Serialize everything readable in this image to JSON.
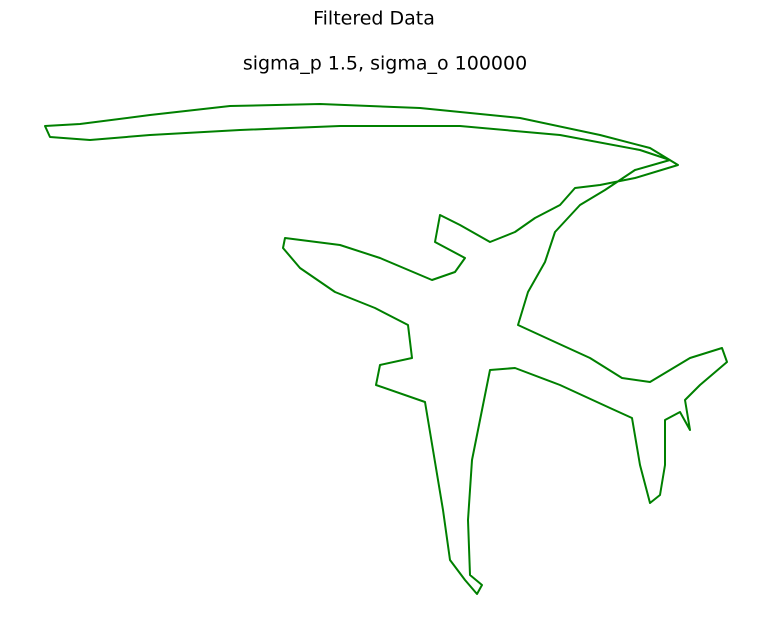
{
  "chart_data": {
    "type": "line",
    "suptitle": "Filtered Data",
    "title": "sigma_p 1.5, sigma_o 100000",
    "x": [
      670,
      640,
      560,
      460,
      340,
      240,
      150,
      90,
      50,
      45,
      80,
      150,
      230,
      320,
      420,
      520,
      600,
      650,
      678,
      635,
      600,
      575,
      560,
      535,
      515,
      490,
      460,
      440,
      435,
      465,
      455,
      432,
      380,
      340,
      285,
      283,
      300,
      335,
      375,
      408,
      412,
      380,
      376,
      425,
      433,
      443,
      450,
      465,
      477,
      482,
      470,
      468,
      472,
      482,
      490,
      515,
      560,
      610,
      632,
      640,
      650,
      660,
      665,
      665,
      680,
      690,
      685,
      700,
      727,
      722,
      690,
      650,
      622,
      590,
      555,
      518,
      528,
      545,
      555,
      580,
      605,
      635,
      670
    ],
    "series": [
      {
        "color": "#008000",
        "values": [
          469,
          479,
          494,
          503,
          503,
          499,
          494,
          489,
          492,
          503,
          505,
          514,
          523,
          525,
          521,
          511,
          494,
          481,
          464,
          451,
          444,
          441,
          424,
          411,
          397,
          387,
          404,
          414,
          387,
          371,
          357,
          349,
          371,
          384,
          391,
          381,
          361,
          337,
          321,
          304,
          271,
          264,
          244,
          227,
          179,
          119,
          69,
          49,
          35,
          44,
          54,
          109,
          169,
          219,
          259,
          261,
          244,
          221,
          211,
          164,
          126,
          134,
          164,
          209,
          217,
          199,
          229,
          244,
          267,
          281,
          271,
          247,
          251,
          271,
          287,
          304,
          337,
          367,
          397,
          424,
          439,
          459,
          469
        ]
      }
    ],
    "xlim": [
      40,
      735
    ],
    "ylim": [
      29,
      529
    ]
  }
}
